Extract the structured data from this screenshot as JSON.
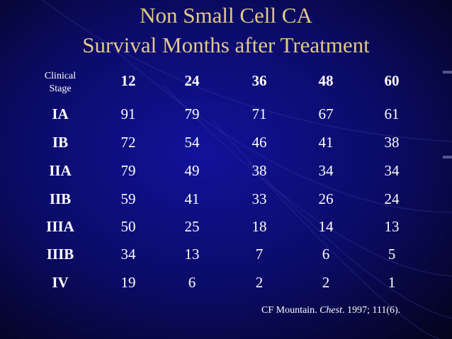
{
  "title": {
    "line1": "Non Small Cell CA",
    "line2": "Survival Months after Treatment"
  },
  "table": {
    "stage_header": [
      "Clinical",
      "Stage"
    ],
    "columns": [
      "12",
      "24",
      "36",
      "48",
      "60"
    ],
    "rows": [
      {
        "stage": "IA",
        "values": [
          "91",
          "79",
          "71",
          "67",
          "61"
        ]
      },
      {
        "stage": "IB",
        "values": [
          "72",
          "54",
          "46",
          "41",
          "38"
        ]
      },
      {
        "stage": "IIA",
        "values": [
          "79",
          "49",
          "38",
          "34",
          "34"
        ]
      },
      {
        "stage": "IIB",
        "values": [
          "59",
          "41",
          "33",
          "26",
          "24"
        ]
      },
      {
        "stage": "IIIA",
        "values": [
          "50",
          "25",
          "18",
          "14",
          "13"
        ]
      },
      {
        "stage": "IIIB",
        "values": [
          "34",
          "13",
          "7",
          "6",
          "5"
        ]
      },
      {
        "stage": "IV",
        "values": [
          "19",
          "6",
          "2",
          "2",
          "1"
        ]
      }
    ]
  },
  "source": {
    "prefix": "CF Mountain. ",
    "journal": "Chest",
    "suffix": ". 1997; 111(6)."
  },
  "colors": {
    "background": "#06062e",
    "title": "#e3c987",
    "text": "#ffffff"
  }
}
